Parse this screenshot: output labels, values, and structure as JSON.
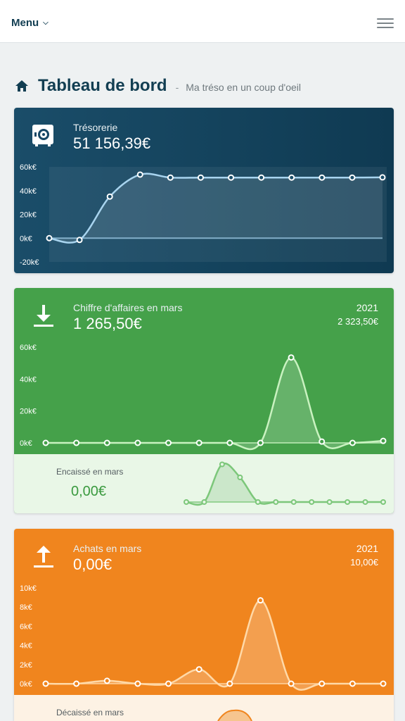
{
  "topbar": {
    "menu_label": "Menu"
  },
  "header": {
    "title": "Tableau de bord",
    "separator": "-",
    "subtitle": "Ma tréso en un coup d'oeil"
  },
  "cards": {
    "treso": {
      "label": "Trésorerie",
      "value": "51 156,39€",
      "icon": "safe-icon",
      "color": "#164766"
    },
    "ca": {
      "label": "Chiffre d'affaires en mars",
      "value": "1 265,50€",
      "year": "2021",
      "prev_value": "2 323,50€",
      "icon": "download-icon",
      "color": "#45a14a",
      "sub": {
        "label": "Encaissé en mars",
        "value": "0,00€"
      }
    },
    "achats": {
      "label": "Achats en mars",
      "value": "0,00€",
      "year": "2021",
      "prev_value": "10,00€",
      "icon": "upload-icon",
      "color": "#f0851e",
      "sub": {
        "label": "Décaissé en mars"
      }
    }
  },
  "chart_data": [
    {
      "type": "area",
      "name": "tresorerie",
      "y_ticks": [
        "60k€",
        "40k€",
        "20k€",
        "0k€",
        "-20k€"
      ],
      "ylim": [
        -20000,
        60000
      ],
      "values": [
        0,
        -1500,
        35000,
        53500,
        51000,
        51000,
        51000,
        51000,
        51000,
        51000,
        51000,
        51156
      ]
    },
    {
      "type": "area",
      "name": "chiffre-affaires",
      "y_ticks": [
        "60k€",
        "40k€",
        "20k€",
        "0k€"
      ],
      "ylim": [
        0,
        60000
      ],
      "values": [
        0,
        0,
        0,
        0,
        0,
        0,
        0,
        0,
        53500,
        800,
        0,
        1265.5
      ]
    },
    {
      "type": "area",
      "name": "encaisse",
      "values": [
        0,
        0,
        53500,
        35000,
        0,
        0,
        0,
        0,
        0,
        0,
        0,
        0
      ],
      "ylim": [
        0,
        60000
      ]
    },
    {
      "type": "area",
      "name": "achats",
      "y_ticks": [
        "10k€",
        "8k€",
        "6k€",
        "4k€",
        "2k€",
        "0k€"
      ],
      "ylim": [
        0,
        10000
      ],
      "values": [
        0,
        0,
        300,
        0,
        0,
        1500,
        0,
        8700,
        0,
        0,
        0,
        0
      ]
    }
  ]
}
